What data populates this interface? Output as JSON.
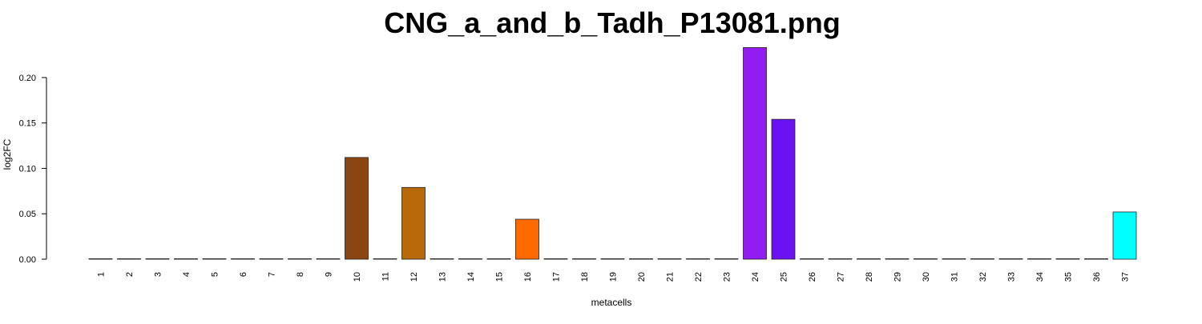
{
  "chart_data": {
    "type": "bar",
    "title": "CNG_a_and_b_Tadh_P13081.png",
    "xlabel": "metacells",
    "ylabel": "log2FC",
    "ylim": [
      0,
      0.2334
    ],
    "yticks": [
      "0.00",
      "0.05",
      "0.10",
      "0.15",
      "0.20"
    ],
    "ytick_values": [
      0,
      0.05,
      0.1,
      0.15,
      0.2
    ],
    "grid": false,
    "categories": [
      "1",
      "2",
      "3",
      "4",
      "5",
      "6",
      "7",
      "8",
      "9",
      "10",
      "11",
      "12",
      "13",
      "14",
      "15",
      "16",
      "17",
      "18",
      "19",
      "20",
      "21",
      "22",
      "23",
      "24",
      "25",
      "26",
      "27",
      "28",
      "29",
      "30",
      "31",
      "32",
      "33",
      "34",
      "35",
      "36",
      "37"
    ],
    "values": [
      0,
      0,
      0,
      0,
      0,
      0,
      0,
      0,
      0,
      0.112,
      0,
      0.079,
      0,
      0,
      0,
      0.044,
      0,
      0,
      0,
      0,
      0,
      0,
      0,
      0.233,
      0.154,
      0,
      0,
      0,
      0,
      0,
      0,
      0,
      0,
      0,
      0,
      0,
      0.052
    ],
    "colors": [
      "#888888",
      "#888888",
      "#888888",
      "#888888",
      "#888888",
      "#888888",
      "#888888",
      "#888888",
      "#888888",
      "#8B4513",
      "#888888",
      "#B8690A",
      "#888888",
      "#888888",
      "#888888",
      "#FF6A00",
      "#888888",
      "#888888",
      "#888888",
      "#888888",
      "#888888",
      "#888888",
      "#888888",
      "#921CF0",
      "#6A12F2",
      "#888888",
      "#888888",
      "#888888",
      "#888888",
      "#888888",
      "#888888",
      "#888888",
      "#888888",
      "#888888",
      "#888888",
      "#888888",
      "#00FFFF"
    ]
  }
}
